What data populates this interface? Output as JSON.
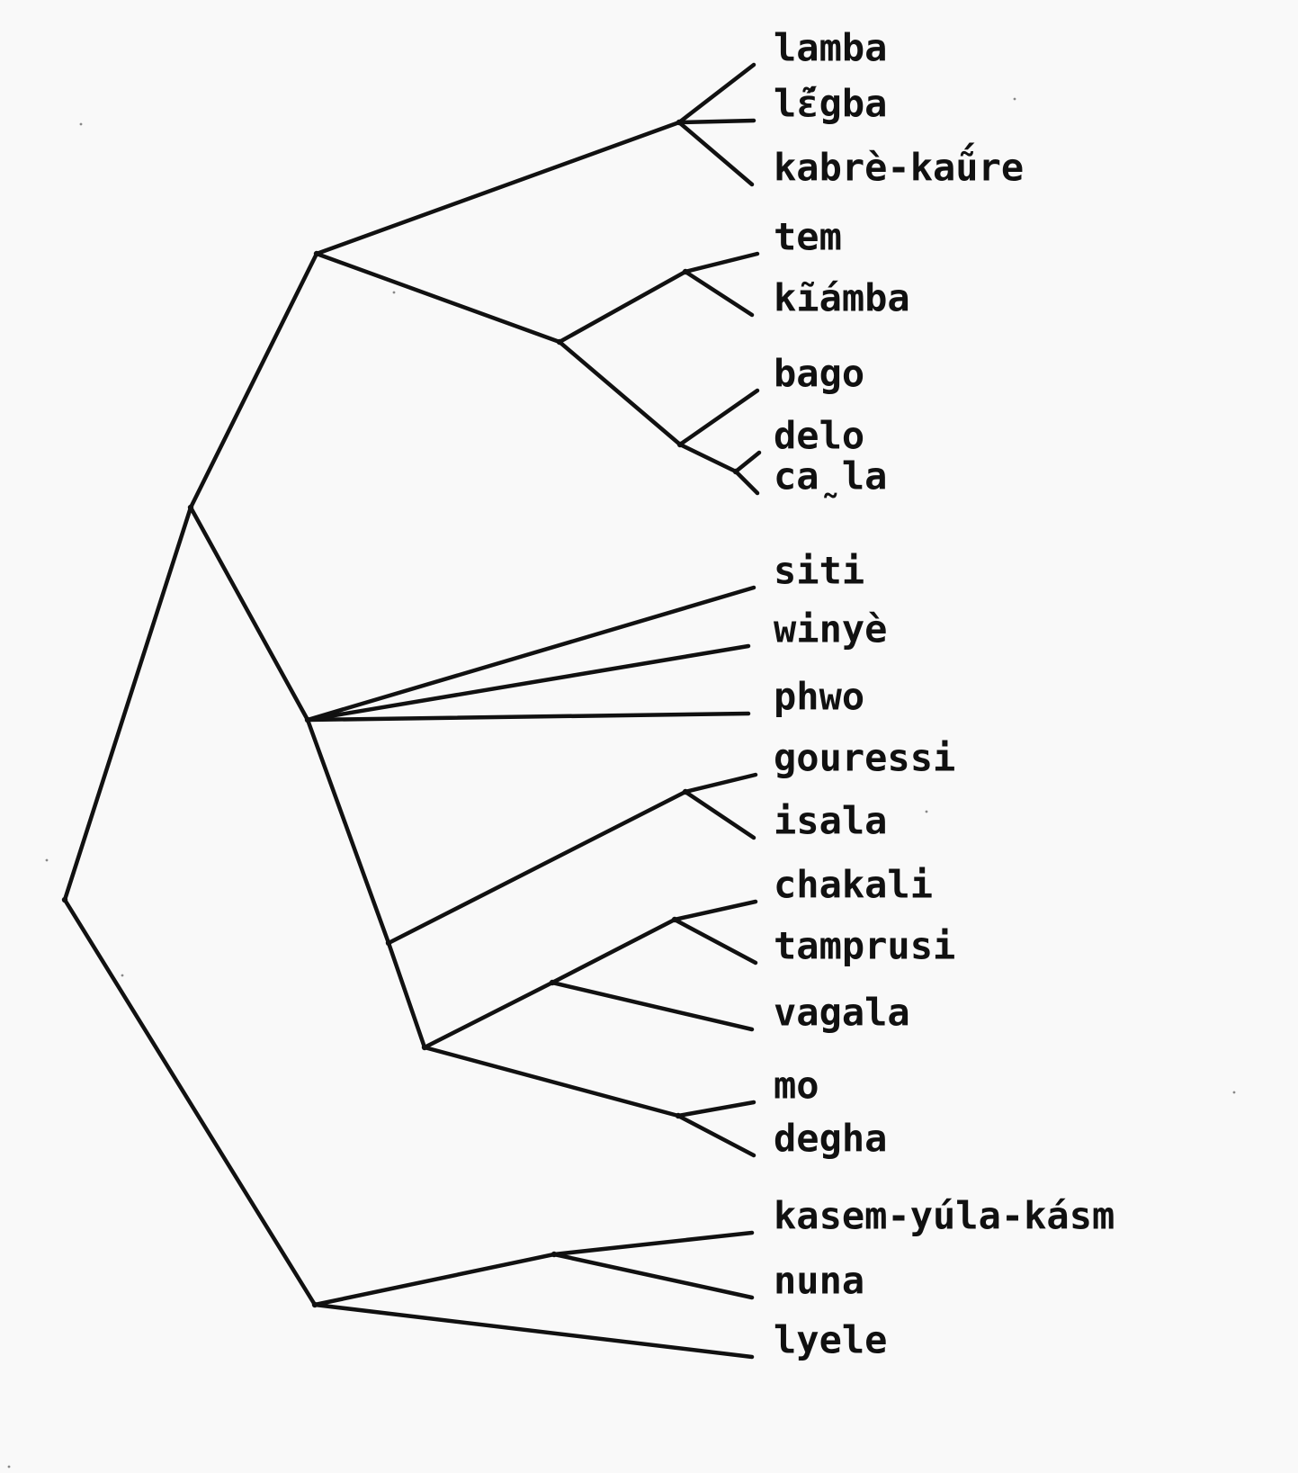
{
  "diagram": {
    "type": "dendrogram",
    "leaves": [
      {
        "id": "lamba",
        "label": "lamba"
      },
      {
        "id": "legba",
        "label": "lɛ̃́gba"
      },
      {
        "id": "kabre",
        "label": "kabrè-kaṹre"
      },
      {
        "id": "tem",
        "label": "tem"
      },
      {
        "id": "kiamba",
        "label": "kĩ́amba"
      },
      {
        "id": "bago",
        "label": "bago"
      },
      {
        "id": "delo",
        "label": "delo"
      },
      {
        "id": "cala",
        "label": "ca̰la"
      },
      {
        "id": "siti",
        "label": "siti"
      },
      {
        "id": "winye",
        "label": "winyè"
      },
      {
        "id": "phwo",
        "label": "phwo"
      },
      {
        "id": "gouressi",
        "label": "gouressi"
      },
      {
        "id": "isala",
        "label": "isala"
      },
      {
        "id": "chakali",
        "label": "chakali"
      },
      {
        "id": "tamprusi",
        "label": "tamprusi"
      },
      {
        "id": "vagala",
        "label": "vagala"
      },
      {
        "id": "mo",
        "label": "mo"
      },
      {
        "id": "degha",
        "label": "degha"
      },
      {
        "id": "kasem",
        "label": "kasem-yúla-kásm"
      },
      {
        "id": "nuna",
        "label": "nuna"
      },
      {
        "id": "lyele",
        "label": "lyele"
      }
    ],
    "tree": {
      "id": "root",
      "children": [
        {
          "id": "upper",
          "children": [
            {
              "id": "north",
              "children": [
                {
                  "id": "lamba-group",
                  "children": [
                    {
                      "leaf": "lamba"
                    },
                    {
                      "leaf": "legba"
                    },
                    {
                      "leaf": "kabre"
                    }
                  ]
                },
                {
                  "id": "tem-bago",
                  "children": [
                    {
                      "id": "tem-group",
                      "children": [
                        {
                          "leaf": "tem"
                        },
                        {
                          "leaf": "kiamba"
                        }
                      ]
                    },
                    {
                      "id": "bago-group",
                      "children": [
                        {
                          "leaf": "bago"
                        },
                        {
                          "id": "delo-group",
                          "children": [
                            {
                              "leaf": "delo"
                            },
                            {
                              "leaf": "cala"
                            }
                          ]
                        }
                      ]
                    }
                  ]
                }
              ]
            },
            {
              "id": "central",
              "children": [
                {
                  "leaf": "siti"
                },
                {
                  "leaf": "winye"
                },
                {
                  "leaf": "phwo"
                },
                {
                  "id": "west",
                  "children": [
                    {
                      "id": "gouressi-group",
                      "children": [
                        {
                          "leaf": "gouressi"
                        },
                        {
                          "leaf": "isala"
                        }
                      ]
                    },
                    {
                      "id": "chakali-mo",
                      "children": [
                        {
                          "id": "chakali-vagala",
                          "children": [
                            {
                              "id": "chakali-group",
                              "children": [
                                {
                                  "leaf": "chakali"
                                },
                                {
                                  "leaf": "tamprusi"
                                }
                              ]
                            },
                            {
                              "leaf": "vagala"
                            }
                          ]
                        },
                        {
                          "id": "mo-group",
                          "children": [
                            {
                              "leaf": "mo"
                            },
                            {
                              "leaf": "degha"
                            }
                          ]
                        }
                      ]
                    }
                  ]
                }
              ]
            }
          ]
        },
        {
          "id": "lower",
          "children": [
            {
              "id": "kasem-group",
              "children": [
                {
                  "leaf": "kasem"
                },
                {
                  "leaf": "nuna"
                }
              ]
            },
            {
              "leaf": "lyele"
            }
          ]
        }
      ]
    }
  }
}
